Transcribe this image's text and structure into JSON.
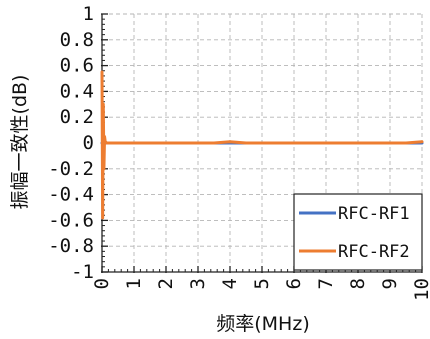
{
  "chart_data": {
    "type": "line",
    "xlabel": "频率(MHz)",
    "ylabel": "振幅一致性(dB)",
    "xlim": [
      0,
      10
    ],
    "ylim": [
      -1,
      1
    ],
    "x_ticks": [
      0,
      1,
      2,
      3,
      4,
      5,
      6,
      7,
      8,
      9,
      10
    ],
    "x_tick_labels": [
      "0",
      "1",
      "2",
      "3",
      "4",
      "5",
      "6",
      "7",
      "8",
      "9",
      "10"
    ],
    "y_ticks": [
      1,
      0.8,
      0.6,
      0.4,
      0.2,
      0,
      -0.2,
      -0.4,
      -0.6,
      -0.8,
      -1
    ],
    "y_tick_labels": [
      "1",
      "0.8",
      "0.6",
      "0.4",
      "0.2",
      "0",
      "-0.2",
      "-0.4",
      "-0.6",
      "-0.8",
      "-1"
    ],
    "grid": true,
    "legend_position": "bottom-right",
    "series": [
      {
        "name": "RFC-RF1",
        "color": "#4472C4",
        "x": [
          0,
          0.02,
          0.05,
          0.1,
          0.5,
          1,
          2,
          3,
          4,
          5,
          6,
          7,
          8,
          9,
          10
        ],
        "y": [
          0,
          0.0,
          0.0,
          0.0,
          0,
          0,
          0,
          0,
          0,
          0,
          0,
          0,
          0,
          0,
          0
        ]
      },
      {
        "name": "RFC-RF2",
        "color": "#ED7D31",
        "x": [
          0,
          0.02,
          0.04,
          0.06,
          0.08,
          0.1,
          0.15,
          0.5,
          1,
          1.5,
          2,
          2.5,
          3,
          3.5,
          4,
          4.5,
          5,
          5.5,
          6,
          6.5,
          7,
          7.5,
          8,
          8.5,
          9,
          9.5,
          10
        ],
        "y": [
          0.55,
          -0.58,
          0.3,
          -0.2,
          0.05,
          0.01,
          0.0,
          0.0,
          0.0,
          0.0,
          0.0,
          0.0,
          0.0,
          0.0,
          0.01,
          0.0,
          0.0,
          0.0,
          0.0,
          0.0,
          0.0,
          0.0,
          0.0,
          0.0,
          0.0,
          0.0,
          0.01
        ]
      }
    ]
  }
}
